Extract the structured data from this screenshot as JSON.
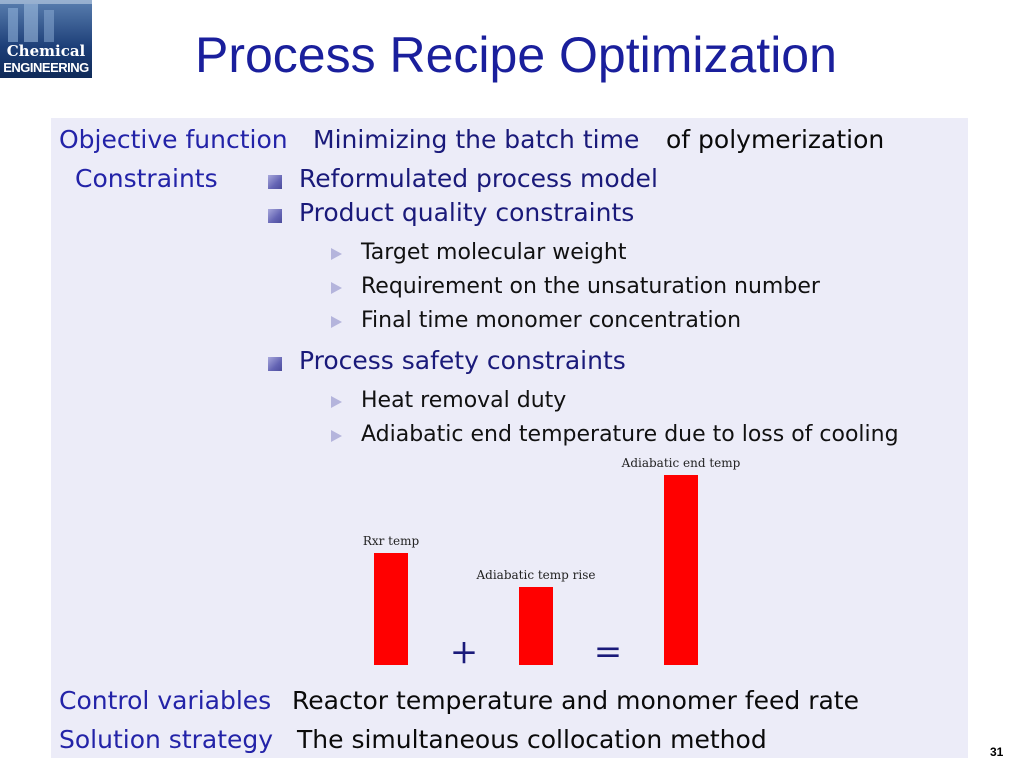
{
  "logo": {
    "line1": "Chemical",
    "line2": "ENGINEERING"
  },
  "title": "Process Recipe Optimization",
  "objective": {
    "label": "Objective function",
    "emphasis": "Minimizing the batch time",
    "rest": "of polymerization"
  },
  "constraints": {
    "label": "Constraints",
    "items": [
      {
        "text": "Reformulated process model",
        "subitems": []
      },
      {
        "text": "Product quality constraints",
        "subitems": [
          "Target molecular weight",
          "Requirement on the unsaturation number",
          "Final time monomer concentration"
        ]
      },
      {
        "text": "Process safety constraints",
        "subitems": [
          "Heat removal duty",
          "Adiabatic end temperature due to loss of cooling"
        ]
      }
    ]
  },
  "diagram": {
    "labels": [
      "Rxr temp",
      "Adiabatic temp rise",
      "Adiabatic end temp"
    ],
    "operators": [
      "+",
      "="
    ],
    "bar_color": "#ff0000"
  },
  "control": {
    "label": "Control variables",
    "value": "Reactor temperature and monomer feed rate"
  },
  "solution": {
    "label": "Solution strategy",
    "value": "The simultaneous collocation method"
  },
  "slide_number": "31"
}
